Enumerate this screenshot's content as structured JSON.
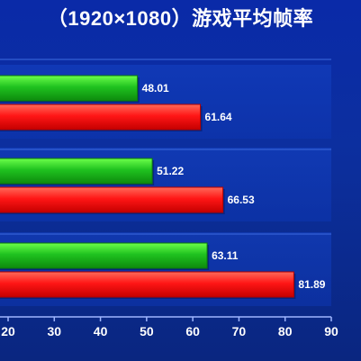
{
  "chart_data": {
    "type": "bar",
    "orientation": "horizontal",
    "title": "（1920×1080）游戏平均帧率",
    "groups": 3,
    "series": [
      {
        "color": "#22cc22",
        "values": [
          48.01,
          51.22,
          63.11
        ]
      },
      {
        "color": "#ff1a1a",
        "values": [
          61.64,
          66.53,
          81.89
        ]
      }
    ],
    "data_labels": [
      [
        "48.01",
        "51.22",
        "63.11"
      ],
      [
        "61.64",
        "66.53",
        "81.89"
      ]
    ],
    "x_ticks": [
      "20",
      "30",
      "40",
      "50",
      "60",
      "70",
      "80",
      "90"
    ],
    "xlim": [
      20,
      90
    ],
    "grid": false,
    "legend": "none"
  }
}
